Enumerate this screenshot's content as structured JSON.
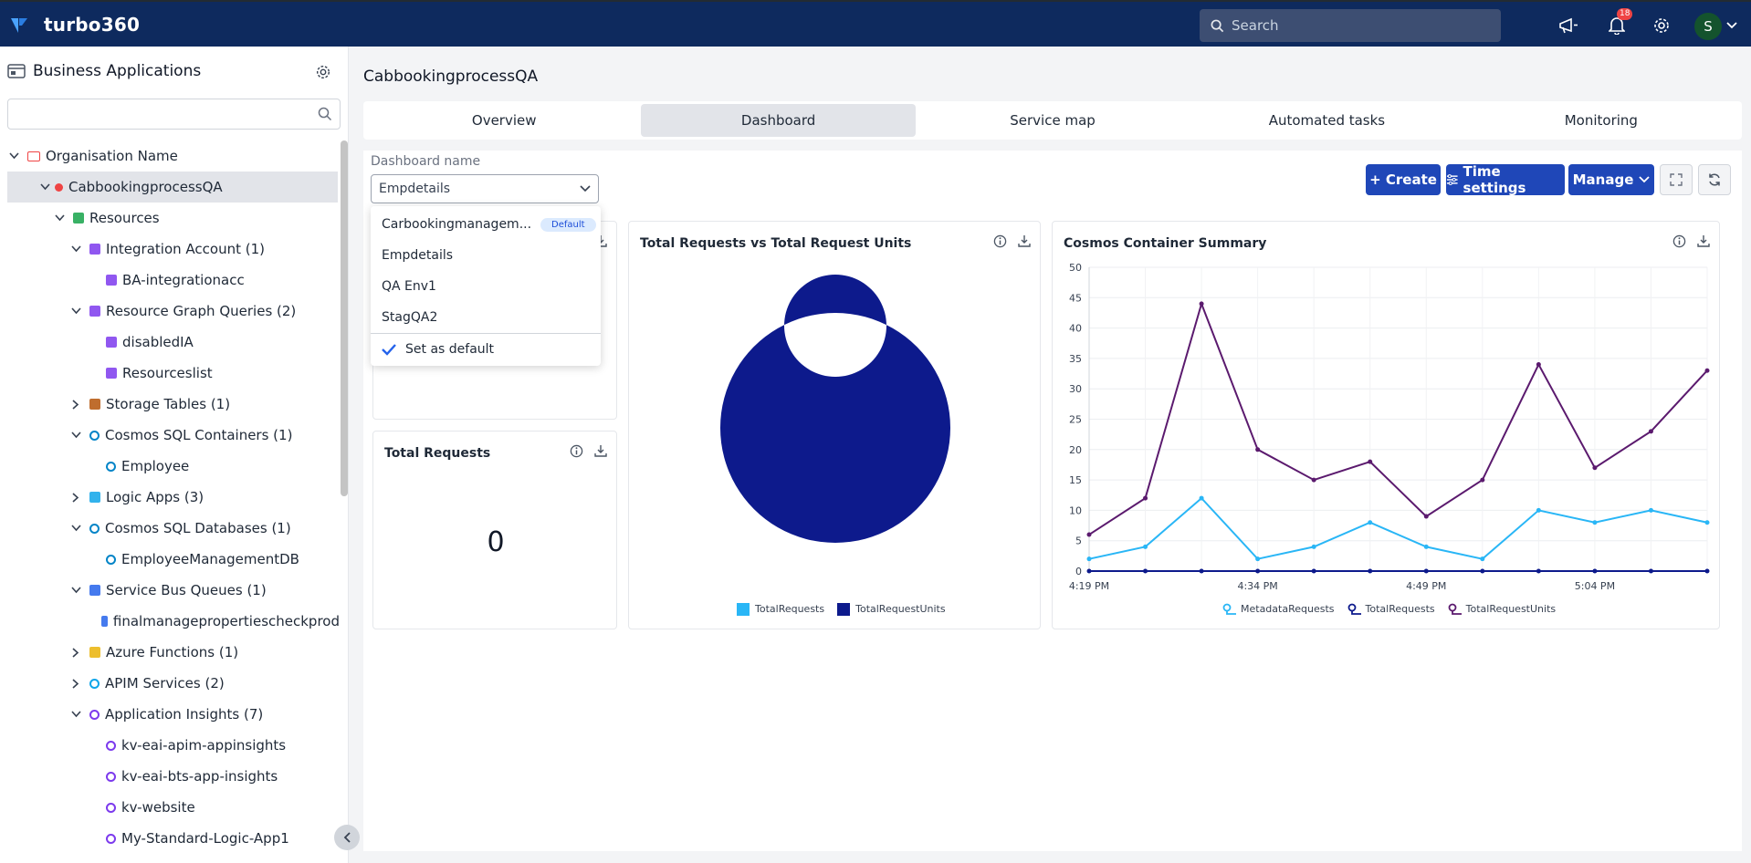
{
  "app": {
    "brand": "turbo360",
    "search_placeholder": "Search",
    "notifications_count": "18",
    "avatar_initial": "S"
  },
  "sidebar": {
    "title": "Business Applications",
    "search_value": "",
    "tree": [
      {
        "label": "Organisation Name",
        "level": 0,
        "chevron": "down",
        "icon": "folder-icon",
        "icon_color": "#ef4444"
      },
      {
        "label": "CabbookingprocessQA",
        "level": 1,
        "chevron": "down",
        "icon": "status-dot-icon",
        "icon_color": "#ef4444",
        "selected": true
      },
      {
        "label": "Resources",
        "level": 2,
        "chevron": "down",
        "icon": "grid-icon",
        "icon_color": "#16a34a"
      },
      {
        "label": "Integration Account (1)",
        "level": 3,
        "chevron": "down",
        "icon": "integration-account-icon",
        "icon_color": "#7c3aed"
      },
      {
        "label": "BA-integrationacc",
        "level": 4,
        "chevron": "",
        "icon": "integration-account-icon",
        "icon_color": "#7c3aed"
      },
      {
        "label": "Resource Graph Queries (2)",
        "level": 3,
        "chevron": "down",
        "icon": "resource-graph-icon",
        "icon_color": "#7c3aed"
      },
      {
        "label": "disabledIA",
        "level": 4,
        "chevron": "",
        "icon": "resource-graph-icon",
        "icon_color": "#7c3aed"
      },
      {
        "label": "Resourceslist",
        "level": 4,
        "chevron": "",
        "icon": "resource-graph-icon",
        "icon_color": "#7c3aed"
      },
      {
        "label": "Storage Tables (1)",
        "level": 3,
        "chevron": "right",
        "icon": "storage-table-icon",
        "icon_color": "#b45309"
      },
      {
        "label": "Cosmos SQL Containers (1)",
        "level": 3,
        "chevron": "down",
        "icon": "cosmos-icon",
        "icon_color": "#0284c7"
      },
      {
        "label": "Employee",
        "level": 4,
        "chevron": "",
        "icon": "cosmos-icon",
        "icon_color": "#0284c7"
      },
      {
        "label": "Logic Apps (3)",
        "level": 3,
        "chevron": "right",
        "icon": "logic-app-icon",
        "icon_color": "#0ea5e9"
      },
      {
        "label": "Cosmos SQL Databases (1)",
        "level": 3,
        "chevron": "down",
        "icon": "cosmos-icon",
        "icon_color": "#0284c7"
      },
      {
        "label": "EmployeeManagementDB",
        "level": 4,
        "chevron": "",
        "icon": "cosmos-icon",
        "icon_color": "#0284c7"
      },
      {
        "label": "Service Bus Queues (1)",
        "level": 3,
        "chevron": "down",
        "icon": "service-bus-icon",
        "icon_color": "#2563eb"
      },
      {
        "label": "finalmanagepropertiescheckprod",
        "level": 4,
        "chevron": "",
        "icon": "service-bus-icon",
        "icon_color": "#2563eb"
      },
      {
        "label": "Azure Functions (1)",
        "level": 3,
        "chevron": "right",
        "icon": "function-icon",
        "icon_color": "#eab308"
      },
      {
        "label": "APIM Services (2)",
        "level": 3,
        "chevron": "right",
        "icon": "apim-icon",
        "icon_color": "#0ea5e9"
      },
      {
        "label": "Application Insights (7)",
        "level": 3,
        "chevron": "down",
        "icon": "app-insights-icon",
        "icon_color": "#7c3aed"
      },
      {
        "label": "kv-eai-apim-appinsights",
        "level": 4,
        "chevron": "",
        "icon": "app-insights-icon",
        "icon_color": "#7c3aed"
      },
      {
        "label": "kv-eai-bts-app-insights",
        "level": 4,
        "chevron": "",
        "icon": "app-insights-icon",
        "icon_color": "#7c3aed"
      },
      {
        "label": "kv-website",
        "level": 4,
        "chevron": "",
        "icon": "app-insights-icon",
        "icon_color": "#7c3aed"
      },
      {
        "label": "My-Standard-Logic-App1",
        "level": 4,
        "chevron": "",
        "icon": "app-insights-icon",
        "icon_color": "#7c3aed"
      }
    ]
  },
  "main": {
    "title": "CabbookingprocessQA",
    "tabs": [
      {
        "label": "Overview"
      },
      {
        "label": "Dashboard",
        "active": true
      },
      {
        "label": "Service map"
      },
      {
        "label": "Automated tasks"
      },
      {
        "label": "Monitoring"
      }
    ],
    "dashboard_label": "Dashboard name",
    "dashboard_value": "Empdetails",
    "buttons": {
      "create": "+ Create",
      "time_settings": "Time settings",
      "manage": "Manage"
    },
    "dropdown": {
      "options": [
        {
          "label": "Carbookingmanagem...",
          "badge": "Default"
        },
        {
          "label": "Empdetails"
        },
        {
          "label": "QA Env1"
        },
        {
          "label": "StagQA2"
        }
      ],
      "set_default": "Set as default"
    },
    "cards": {
      "total_requests": {
        "title": "Total Requests",
        "value": "0"
      },
      "donut": {
        "title": "Total Requests vs Total Request Units"
      },
      "cosmos": {
        "title": "Cosmos Container Summary"
      }
    }
  },
  "chart_data": [
    {
      "type": "pie",
      "title": "Total Requests vs Total Request Units",
      "series": [
        {
          "name": "TotalRequests",
          "value": 0,
          "color": "#29b6f6"
        },
        {
          "name": "TotalRequestUnits",
          "value": 100,
          "color": "#0d1a8c"
        }
      ]
    },
    {
      "type": "line",
      "title": "Cosmos Container Summary",
      "ylim": [
        0,
        50
      ],
      "yticks": [
        0,
        5,
        10,
        15,
        20,
        25,
        30,
        35,
        40,
        45,
        50
      ],
      "x_tick_labels": [
        "4:19 PM",
        "4:34 PM",
        "4:49 PM",
        "5:04 PM"
      ],
      "series": [
        {
          "name": "MetadataRequests",
          "color": "#29b6f6",
          "values": [
            2,
            4,
            12,
            2,
            4,
            8,
            4,
            2,
            10,
            8,
            10,
            8
          ]
        },
        {
          "name": "TotalRequests",
          "color": "#0d1a8c",
          "values": [
            0,
            0,
            0,
            0,
            0,
            0,
            0,
            0,
            0,
            0,
            0,
            0
          ]
        },
        {
          "name": "TotalRequestUnits",
          "color": "#5b1a6e",
          "values": [
            6,
            12,
            44,
            20,
            15,
            18,
            9,
            15,
            34,
            17,
            23,
            33
          ]
        }
      ]
    }
  ]
}
